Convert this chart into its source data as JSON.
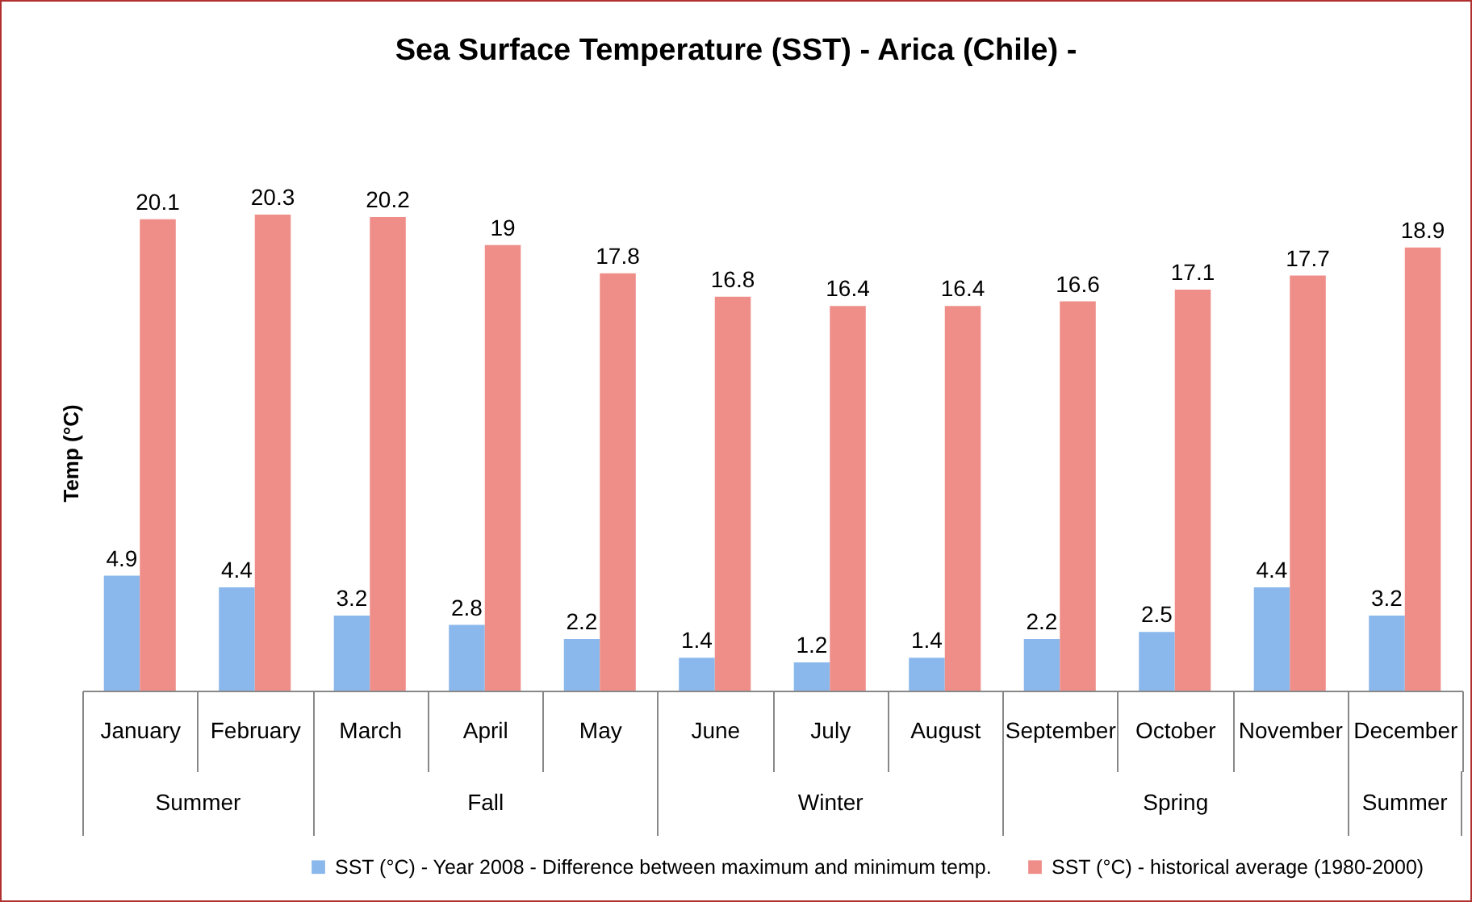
{
  "chart_data": {
    "type": "bar",
    "title": "Sea Surface Temperature (SST) - Arica (Chile) -",
    "ylabel": "Temp (°C)",
    "categories": [
      "January",
      "February",
      "March",
      "April",
      "May",
      "June",
      "July",
      "August",
      "September",
      "October",
      "November",
      "December"
    ],
    "series": [
      {
        "name": "SST (°C) - Year 2008 - Difference between maximum and minimum temp.",
        "color": "#8ab8ec",
        "values": [
          4.9,
          4.4,
          3.2,
          2.8,
          2.2,
          1.4,
          1.2,
          1.4,
          2.2,
          2.5,
          4.4,
          3.2
        ]
      },
      {
        "name": "SST (°C) - historical average (1980-2000)",
        "color": "#ef8e88",
        "values": [
          20.1,
          20.3,
          20.2,
          19,
          17.8,
          16.8,
          16.4,
          16.4,
          16.6,
          17.1,
          17.7,
          18.9
        ]
      }
    ],
    "annotations": [
      "Summer",
      "Fall",
      "Winter",
      "Spring",
      "Summer"
    ],
    "data_labels": true,
    "legend": "bottom",
    "tick_labels": "x",
    "grid": false
  }
}
